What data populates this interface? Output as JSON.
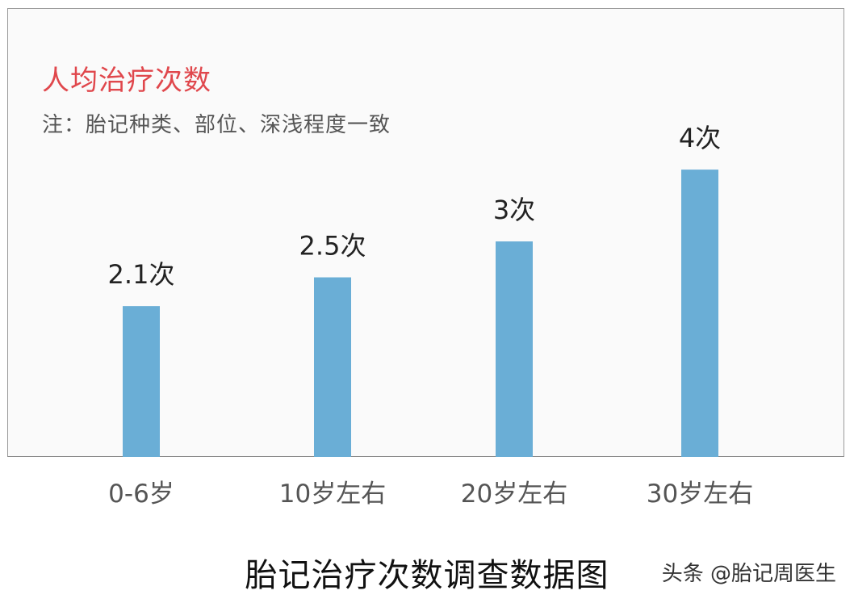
{
  "chart_data": {
    "type": "bar",
    "title": "人均治疗次数",
    "subtitle": "注：胎记种类、部位、深浅程度一致",
    "categories": [
      "0-6岁",
      "10岁左右",
      "20岁左右",
      "30岁左右"
    ],
    "values": [
      2.1,
      2.5,
      3,
      4
    ],
    "data_labels": [
      "2.1次",
      "2.5次",
      "3次",
      "4次"
    ],
    "ylim": [
      0,
      4.9
    ],
    "grid": false,
    "colors": {
      "bar": "#6aaed6",
      "title": "#e0474c"
    }
  },
  "caption": "胎记治疗次数调查数据图",
  "watermark": "头条 @胎记周医生"
}
